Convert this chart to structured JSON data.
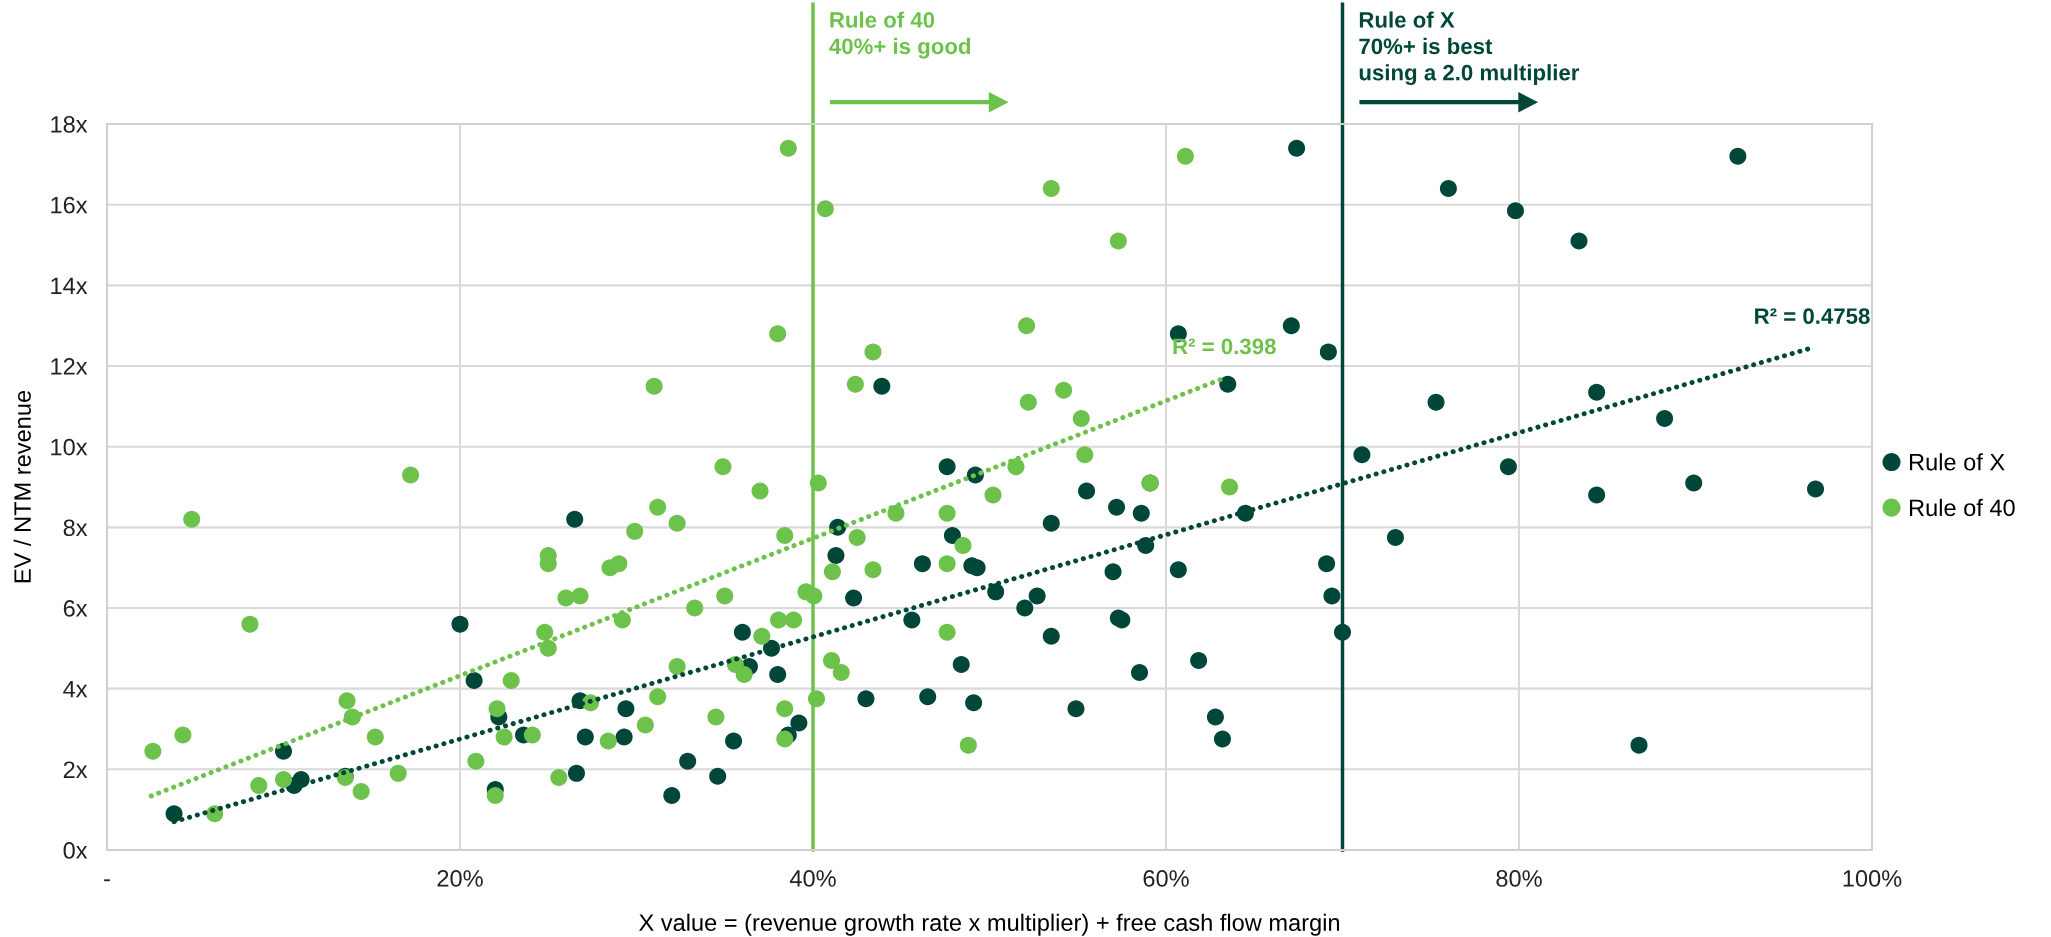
{
  "chart_data": {
    "type": "scatter",
    "xlabel": "X value = (revenue growth rate x multiplier) + free cash flow margin",
    "ylabel": "EV / NTM revenue",
    "xlim": [
      0,
      100
    ],
    "xticks": [
      {
        "value": 0,
        "label": "-"
      },
      {
        "value": 20,
        "label": "20%"
      },
      {
        "value": 40,
        "label": "40%"
      },
      {
        "value": 60,
        "label": "60%"
      },
      {
        "value": 80,
        "label": "80%"
      },
      {
        "value": 100,
        "label": "100%"
      }
    ],
    "ylim": [
      0,
      18
    ],
    "yticks": [
      {
        "value": 0,
        "label": "0x"
      },
      {
        "value": 2,
        "label": "2x"
      },
      {
        "value": 4,
        "label": "4x"
      },
      {
        "value": 6,
        "label": "6x"
      },
      {
        "value": 8,
        "label": "8x"
      },
      {
        "value": 10,
        "label": "10x"
      },
      {
        "value": 12,
        "label": "12x"
      },
      {
        "value": 14,
        "label": "14x"
      },
      {
        "value": 16,
        "label": "16x"
      },
      {
        "value": 18,
        "label": "18x"
      }
    ],
    "grid": true,
    "legend": "right",
    "marker": "circle",
    "series": [
      {
        "name": "Rule of X",
        "color": "#00473a",
        "x": [
          3.8,
          10.0,
          11.0,
          10.6,
          13.5,
          20.0,
          20.8,
          22.2,
          22.0,
          23.6,
          26.5,
          26.8,
          27.1,
          26.6,
          29.4,
          29.3,
          32.0,
          32.9,
          34.6,
          35.5,
          36.0,
          36.4,
          37.65,
          38.0,
          38.6,
          39.2,
          41.3,
          41.4,
          42.3,
          43.0,
          43.9,
          45.6,
          46.2,
          46.5,
          47.6,
          47.9,
          48.4,
          49.0,
          49.3,
          49.1,
          49.2,
          50.35,
          52.0,
          52.7,
          53.5,
          53.5,
          54.9,
          55.5,
          57.0,
          57.2,
          57.3,
          57.5,
          58.5,
          58.6,
          58.85,
          59.1,
          60.7,
          60.7,
          61.85,
          62.8,
          63.2,
          63.5,
          64.5,
          67.1,
          67.4,
          69.1,
          69.2,
          69.4,
          70.0,
          71.1,
          73.0,
          75.3,
          76.0,
          79.4,
          79.8,
          83.4,
          84.4,
          84.4,
          86.8,
          88.25,
          89.9,
          92.4,
          96.8
        ],
        "values": [
          0.9,
          2.45,
          1.75,
          1.6,
          1.83,
          5.6,
          4.2,
          3.3,
          1.5,
          2.85,
          8.2,
          3.7,
          2.8,
          1.9,
          3.5,
          2.8,
          1.35,
          2.2,
          1.83,
          2.7,
          5.4,
          4.55,
          5.0,
          4.35,
          2.85,
          3.15,
          7.3,
          8.0,
          6.25,
          3.75,
          11.5,
          5.7,
          7.1,
          3.8,
          9.5,
          7.8,
          4.6,
          7.05,
          7.0,
          3.65,
          9.3,
          6.4,
          6.0,
          6.3,
          8.1,
          5.3,
          3.5,
          8.9,
          6.9,
          8.5,
          5.75,
          5.7,
          4.4,
          8.35,
          7.55,
          9.1,
          12.8,
          6.95,
          4.7,
          3.3,
          2.75,
          11.55,
          8.35,
          13.0,
          17.4,
          7.1,
          12.35,
          6.3,
          5.4,
          9.8,
          7.75,
          11.1,
          16.4,
          9.5,
          15.85,
          15.1,
          11.35,
          8.8,
          2.6,
          10.7,
          9.1,
          17.2,
          8.95
        ]
      },
      {
        "name": "Rule of 40",
        "color": "#6cc24a",
        "x": [
          2.6,
          4.3,
          4.8,
          6.1,
          8.1,
          8.6,
          10.0,
          13.5,
          13.6,
          13.9,
          14.4,
          15.2,
          16.5,
          17.2,
          20.9,
          22.0,
          22.1,
          22.5,
          22.9,
          24.1,
          24.8,
          25.0,
          25.0,
          25.0,
          25.6,
          26.0,
          26.8,
          27.4,
          28.4,
          28.5,
          29.0,
          29.2,
          29.9,
          30.5,
          31.0,
          31.2,
          31.2,
          32.3,
          32.3,
          33.3,
          34.5,
          34.9,
          35.0,
          35.6,
          36.1,
          37.0,
          37.1,
          38.0,
          38.05,
          38.4,
          38.4,
          38.4,
          38.6,
          38.9,
          39.6,
          40.05,
          40.2,
          40.3,
          40.7,
          41.05,
          41.1,
          41.6,
          42.4,
          42.5,
          43.4,
          43.4,
          44.7,
          47.6,
          47.6,
          47.6,
          48.5,
          48.8,
          50.2,
          51.5,
          52.1,
          52.2,
          53.5,
          54.2,
          55.2,
          55.4,
          57.3,
          59.1,
          61.1,
          63.6
        ],
        "values": [
          2.45,
          2.85,
          8.2,
          0.9,
          5.6,
          1.6,
          1.75,
          1.8,
          3.7,
          3.3,
          1.45,
          2.8,
          1.9,
          9.3,
          2.2,
          1.35,
          3.5,
          2.8,
          4.2,
          2.85,
          5.4,
          5.0,
          7.1,
          7.3,
          1.8,
          6.25,
          6.3,
          3.65,
          2.7,
          7.0,
          7.1,
          5.7,
          7.9,
          3.1,
          11.5,
          8.5,
          3.8,
          8.1,
          4.55,
          6.0,
          3.3,
          9.5,
          6.3,
          4.6,
          4.35,
          8.9,
          5.3,
          12.8,
          5.7,
          7.8,
          3.5,
          2.75,
          17.4,
          5.7,
          6.4,
          6.3,
          3.75,
          9.1,
          15.9,
          4.7,
          6.9,
          4.4,
          11.55,
          7.75,
          12.35,
          6.95,
          8.35,
          8.35,
          7.1,
          5.4,
          7.55,
          2.6,
          8.8,
          9.5,
          13.0,
          11.1,
          16.4,
          11.4,
          10.7,
          9.8,
          15.1,
          9.1,
          17.2,
          9.0
        ]
      },
      {
        "type": "line",
        "color": "#00473a",
        "line_style": "dotted",
        "marker": "none",
        "x": [
          3.8,
          96.6
        ],
        "values": [
          0.7,
          12.45
        ]
      },
      {
        "type": "line",
        "color": "#6cc24a",
        "line_style": "dotted",
        "marker": "none",
        "x": [
          2.5,
          63.3
        ],
        "values": [
          1.34,
          11.7
        ]
      }
    ],
    "annotations": [
      {
        "text": "R² = 0.4758",
        "x": 96.6,
        "y": 12.45
      },
      {
        "text": "R² = 0.398",
        "x": 63.3,
        "y": 11.7
      }
    ],
    "ref_lines": [
      {
        "axis": "x",
        "value": 40,
        "label": "Rule of 40\n40%+ is good",
        "color": "#6cc24a"
      },
      {
        "axis": "x",
        "value": 70,
        "label": "Rule of X\n70%+ is best\nusing a 2.0 multiplier",
        "color": "#00473a"
      }
    ]
  }
}
